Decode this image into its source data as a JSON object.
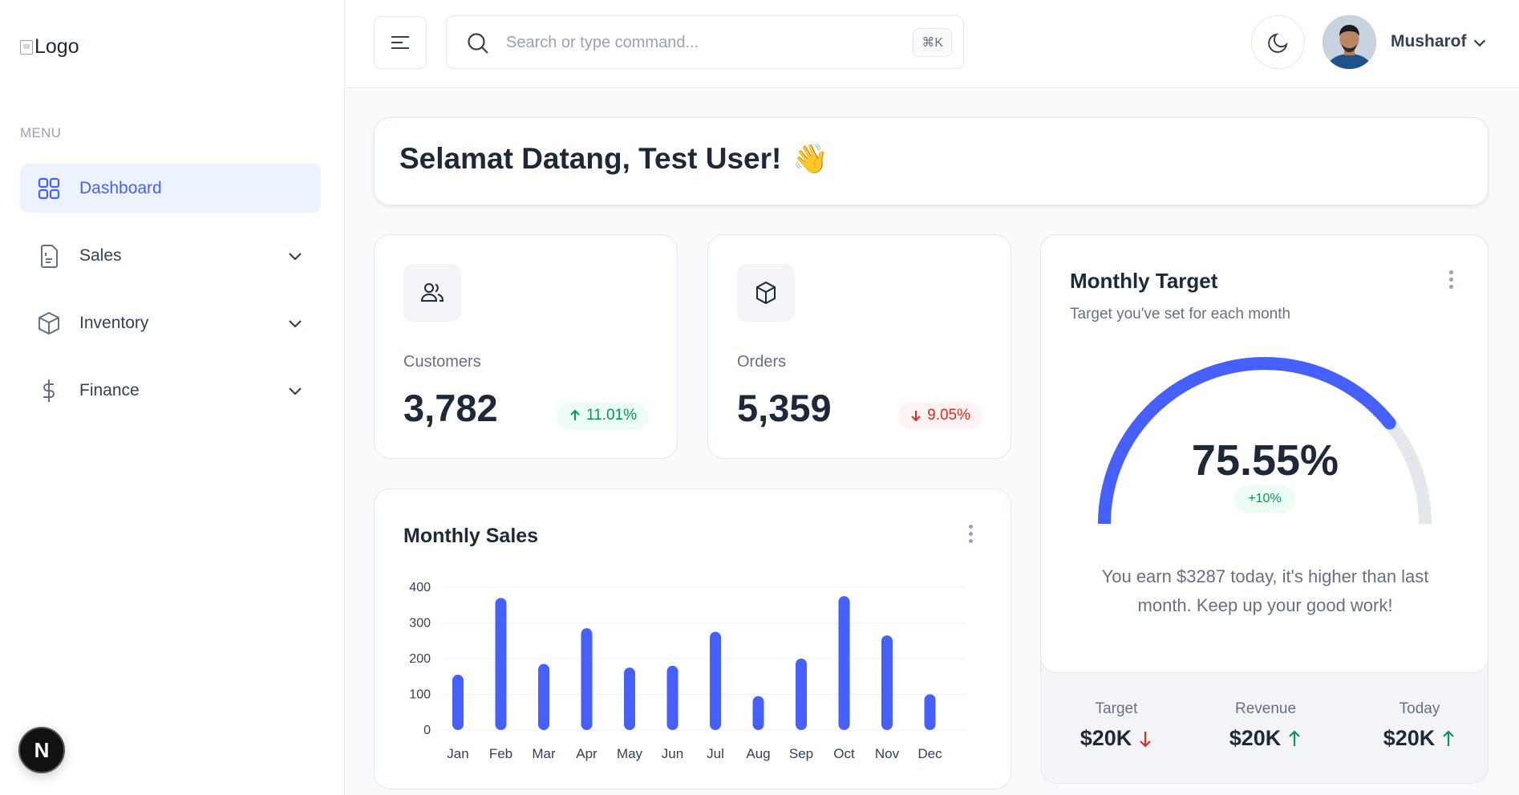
{
  "logo": {
    "alt_text": "Logo"
  },
  "sidebar": {
    "menu_label": "MENU",
    "items": [
      {
        "label": "Dashboard",
        "icon": "grid-icon",
        "active": true
      },
      {
        "label": "Sales",
        "icon": "document-icon"
      },
      {
        "label": "Inventory",
        "icon": "box-icon"
      },
      {
        "label": "Finance",
        "icon": "dollar-icon"
      }
    ]
  },
  "header": {
    "search_placeholder": "Search or type command...",
    "search_shortcut": "⌘K",
    "user_name": "Musharof"
  },
  "welcome": {
    "title": "Selamat Datang, Test User!",
    "emoji": "👋"
  },
  "metrics": {
    "customers": {
      "label": "Customers",
      "value": "3,782",
      "change": "11.01%",
      "direction": "up"
    },
    "orders": {
      "label": "Orders",
      "value": "5,359",
      "change": "9.05%",
      "direction": "down"
    }
  },
  "monthly_sales": {
    "title": "Monthly Sales",
    "chart_data": {
      "type": "bar",
      "categories": [
        "Jan",
        "Feb",
        "Mar",
        "Apr",
        "May",
        "Jun",
        "Jul",
        "Aug",
        "Sep",
        "Oct",
        "Nov",
        "Dec"
      ],
      "values": [
        155,
        370,
        185,
        285,
        175,
        180,
        275,
        95,
        200,
        375,
        265,
        100
      ],
      "ylim": [
        0,
        400
      ],
      "yticks": [
        0,
        100,
        200,
        300,
        400
      ],
      "color": "#465fff",
      "grid": true
    }
  },
  "monthly_target": {
    "title": "Monthly Target",
    "subtitle": "Target you've set for each month",
    "percent_label": "75.55%",
    "percent": 75.55,
    "change": "+10%",
    "message": "You earn $3287 today, it's higher than last month. Keep up your good work!",
    "stats": [
      {
        "label": "Target",
        "value": "$20K",
        "direction": "down"
      },
      {
        "label": "Revenue",
        "value": "$20K",
        "direction": "up"
      },
      {
        "label": "Today",
        "value": "$20K",
        "direction": "up"
      }
    ]
  },
  "colors": {
    "accent": "#465fff",
    "success": "#039855",
    "danger": "#d92d20"
  },
  "next_badge": {
    "letter": "N"
  }
}
